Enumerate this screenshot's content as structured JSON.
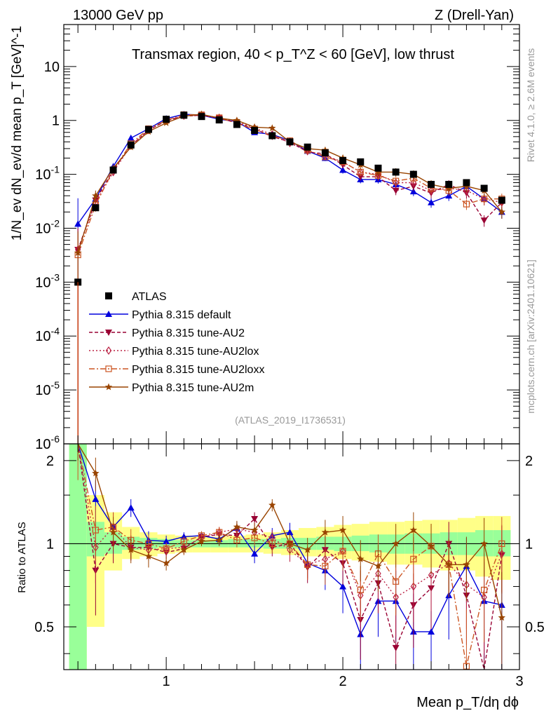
{
  "header": {
    "energy": "13000 GeV pp",
    "process": "Z (Drell-Yan)",
    "rivet": "Rivet 4.1.0, ≥ 2.6M events",
    "mcplots": "mcplots.cern.ch [arXiv:2401.10621]"
  },
  "chart_data": {
    "type": "line",
    "title": "Transmax region, 40 < p_T^Z < 60 [GeV], low thrust",
    "analysis": "(ATLAS_2019_I1736531)",
    "xlabel": "Mean p_T/dη dϕ",
    "ylabel": "1/N_ev dN_ev/d mean p_T [GeV]^-1",
    "ratio_ylabel": "Ratio to ATLAS",
    "xlim": [
      0.42,
      3.0
    ],
    "ylim": [
      1e-06,
      60
    ],
    "ratio_ylim": [
      0.35,
      2.3
    ],
    "yscale": "log",
    "x_ticks": [
      "1",
      "2",
      "3"
    ],
    "y_ticks": [
      "10",
      "1",
      "10^-1",
      "10^-2",
      "10^-3",
      "10^-4",
      "10^-5",
      "10^-6"
    ],
    "ratio_ticks": [
      "0.5",
      "1",
      "2"
    ],
    "legend": [
      "ATLAS",
      "Pythia 8.315 default",
      "Pythia 8.315 tune-AU2",
      "Pythia 8.315 tune-AU2lox",
      "Pythia 8.315 tune-AU2loxx",
      "Pythia 8.315 tune-AU2m"
    ],
    "x": [
      0.5,
      0.6,
      0.7,
      0.8,
      0.9,
      1.0,
      1.1,
      1.2,
      1.3,
      1.4,
      1.5,
      1.6,
      1.7,
      1.8,
      1.9,
      2.0,
      2.1,
      2.2,
      2.3,
      2.4,
      2.5,
      2.6,
      2.7,
      2.8,
      2.9
    ],
    "data": {
      "name": "ATLAS",
      "values": [
        0.001,
        0.024,
        0.12,
        0.35,
        0.68,
        1.05,
        1.25,
        1.18,
        1.02,
        0.84,
        0.65,
        0.52,
        0.4,
        0.32,
        0.25,
        0.18,
        0.17,
        0.13,
        0.11,
        0.1,
        0.065,
        0.065,
        0.07,
        0.055,
        0.033
      ],
      "ratio_band_inner": [
        [
          0.35,
          2.3
        ],
        [
          0.9,
          1.2
        ],
        [
          0.92,
          1.1
        ],
        [
          0.95,
          1.06
        ],
        [
          0.96,
          1.05
        ],
        [
          0.97,
          1.04
        ],
        [
          0.97,
          1.03
        ],
        [
          0.97,
          1.03
        ],
        [
          0.97,
          1.03
        ],
        [
          0.97,
          1.04
        ],
        [
          0.97,
          1.04
        ],
        [
          0.96,
          1.04
        ],
        [
          0.96,
          1.05
        ],
        [
          0.95,
          1.05
        ],
        [
          0.95,
          1.06
        ],
        [
          0.94,
          1.06
        ],
        [
          0.94,
          1.07
        ],
        [
          0.93,
          1.08
        ],
        [
          0.92,
          1.08
        ],
        [
          0.92,
          1.09
        ],
        [
          0.92,
          1.09
        ],
        [
          0.91,
          1.1
        ],
        [
          0.91,
          1.1
        ],
        [
          0.9,
          1.12
        ],
        [
          0.9,
          1.12
        ]
      ],
      "ratio_band_outer": [
        [
          0.35,
          2.3
        ],
        [
          0.5,
          1.5
        ],
        [
          0.8,
          1.3
        ],
        [
          0.88,
          1.15
        ],
        [
          0.9,
          1.1
        ],
        [
          0.92,
          1.08
        ],
        [
          0.93,
          1.07
        ],
        [
          0.93,
          1.06
        ],
        [
          0.93,
          1.06
        ],
        [
          0.93,
          1.07
        ],
        [
          0.93,
          1.08
        ],
        [
          0.92,
          1.1
        ],
        [
          0.91,
          1.12
        ],
        [
          0.9,
          1.14
        ],
        [
          0.9,
          1.15
        ],
        [
          0.88,
          1.17
        ],
        [
          0.87,
          1.18
        ],
        [
          0.86,
          1.2
        ],
        [
          0.84,
          1.2
        ],
        [
          0.84,
          1.21
        ],
        [
          0.82,
          1.22
        ],
        [
          0.8,
          1.22
        ],
        [
          0.8,
          1.24
        ],
        [
          0.76,
          1.26
        ],
        [
          0.74,
          1.26
        ]
      ]
    },
    "series": [
      {
        "name": "Pythia 8.315 default",
        "color": "#0000dd",
        "marker": "triangle-up",
        "dash": "",
        "values": [
          0.012,
          0.035,
          0.14,
          0.47,
          0.7,
          1.08,
          1.3,
          1.25,
          1.05,
          0.95,
          0.6,
          0.55,
          0.42,
          0.27,
          0.2,
          0.12,
          0.08,
          0.08,
          0.065,
          0.048,
          0.03,
          0.04,
          0.06,
          0.035,
          0.02
        ],
        "ratio": [
          12,
          1.45,
          1.15,
          1.35,
          1.03,
          1.02,
          1.06,
          1.07,
          1.04,
          1.14,
          0.92,
          1.07,
          1.1,
          0.85,
          0.8,
          0.7,
          0.47,
          0.62,
          0.62,
          0.48,
          0.48,
          0.65,
          0.83,
          0.62,
          0.6
        ],
        "ratio_err": [
          2,
          0.25,
          0.15,
          0.1,
          0.08,
          0.05,
          0.04,
          0.04,
          0.05,
          0.06,
          0.07,
          0.07,
          0.09,
          0.1,
          0.12,
          0.14,
          0.15,
          0.16,
          0.18,
          0.18,
          0.2,
          0.2,
          0.22,
          0.24,
          0.25
        ]
      },
      {
        "name": "Pythia 8.315 tune-AU2",
        "color": "#990033",
        "marker": "triangle-down",
        "dash": "5,3",
        "values": [
          0.004,
          0.033,
          0.12,
          0.34,
          0.66,
          0.98,
          1.2,
          1.25,
          1.1,
          0.9,
          0.7,
          0.5,
          0.4,
          0.26,
          0.24,
          0.15,
          0.09,
          0.09,
          0.05,
          0.06,
          0.045,
          0.065,
          0.045,
          0.014,
          0.03
        ],
        "ratio": [
          4,
          0.8,
          1.0,
          0.97,
          0.97,
          0.93,
          0.96,
          1.06,
          1.08,
          1.07,
          1.23,
          0.97,
          1.0,
          0.82,
          0.95,
          0.85,
          0.53,
          0.72,
          0.42,
          0.6,
          0.69,
          1.0,
          0.65,
          0.25,
          0.91
        ],
        "ratio_err": [
          1.5,
          0.25,
          0.15,
          0.1,
          0.08,
          0.05,
          0.04,
          0.04,
          0.05,
          0.06,
          0.07,
          0.07,
          0.09,
          0.1,
          0.12,
          0.14,
          0.15,
          0.16,
          0.18,
          0.18,
          0.2,
          0.2,
          0.22,
          0.24,
          0.25
        ]
      },
      {
        "name": "Pythia 8.315 tune-AU2lox",
        "color": "#bb2244",
        "marker": "diamond-open",
        "dash": "2,3",
        "values": [
          0.004,
          0.03,
          0.11,
          0.34,
          0.66,
          1.0,
          1.22,
          1.23,
          1.12,
          0.95,
          0.72,
          0.55,
          0.38,
          0.27,
          0.22,
          0.17,
          0.11,
          0.1,
          0.07,
          0.07,
          0.05,
          0.055,
          0.05,
          0.035,
          0.03
        ],
        "ratio": [
          4,
          0.97,
          1.15,
          0.97,
          0.95,
          0.96,
          0.97,
          1.05,
          1.1,
          1.13,
          1.1,
          1.05,
          0.95,
          0.84,
          0.88,
          0.94,
          0.65,
          0.78,
          0.64,
          0.7,
          0.77,
          0.85,
          0.71,
          0.64,
          0.92
        ],
        "ratio_err": [
          1.5,
          0.25,
          0.15,
          0.1,
          0.08,
          0.05,
          0.04,
          0.04,
          0.05,
          0.06,
          0.07,
          0.07,
          0.09,
          0.1,
          0.12,
          0.14,
          0.15,
          0.16,
          0.18,
          0.18,
          0.2,
          0.2,
          0.22,
          0.24,
          0.25
        ]
      },
      {
        "name": "Pythia 8.315 tune-AU2loxx",
        "color": "#cc5522",
        "marker": "square-open",
        "dash": "8,3,2,3",
        "values": [
          0.0032,
          0.027,
          0.12,
          0.37,
          0.7,
          1.0,
          1.28,
          1.27,
          1.12,
          0.88,
          0.68,
          0.52,
          0.42,
          0.28,
          0.21,
          0.17,
          0.11,
          0.095,
          0.075,
          0.085,
          0.055,
          0.05,
          0.028,
          0.035,
          0.035
        ],
        "ratio": [
          3.2,
          1.12,
          1.15,
          1.03,
          1.0,
          0.96,
          1.02,
          1.07,
          1.1,
          1.03,
          1.05,
          1.0,
          1.0,
          0.84,
          0.83,
          0.94,
          0.68,
          0.92,
          0.73,
          0.88,
          0.98,
          0.84,
          0.36,
          0.68,
          1.0
        ],
        "ratio_err": [
          1.5,
          0.25,
          0.15,
          0.1,
          0.08,
          0.05,
          0.04,
          0.04,
          0.05,
          0.06,
          0.07,
          0.07,
          0.09,
          0.1,
          0.12,
          0.14,
          0.15,
          0.16,
          0.18,
          0.18,
          0.2,
          0.2,
          0.22,
          0.24,
          0.25
        ]
      },
      {
        "name": "Pythia 8.315 tune-AU2m",
        "color": "#994400",
        "marker": "star",
        "dash": "",
        "values": [
          0.0035,
          0.04,
          0.13,
          0.32,
          0.62,
          0.9,
          1.2,
          1.3,
          1.1,
          1.0,
          0.75,
          0.72,
          0.4,
          0.3,
          0.28,
          0.2,
          0.15,
          0.11,
          0.11,
          0.1,
          0.065,
          0.055,
          0.06,
          0.05,
          0.02
        ],
        "ratio": [
          3.5,
          1.8,
          1.1,
          0.95,
          0.9,
          0.85,
          0.95,
          1.02,
          1.03,
          1.15,
          1.12,
          1.38,
          1.0,
          0.95,
          1.1,
          1.12,
          0.88,
          0.83,
          1.0,
          1.12,
          0.98,
          0.84,
          0.84,
          1.0,
          0.54
        ],
        "ratio_err": [
          1.5,
          0.25,
          0.15,
          0.1,
          0.08,
          0.05,
          0.04,
          0.04,
          0.05,
          0.06,
          0.07,
          0.07,
          0.09,
          0.1,
          0.12,
          0.14,
          0.15,
          0.16,
          0.18,
          0.18,
          0.2,
          0.2,
          0.22,
          0.24,
          0.25
        ]
      }
    ]
  }
}
